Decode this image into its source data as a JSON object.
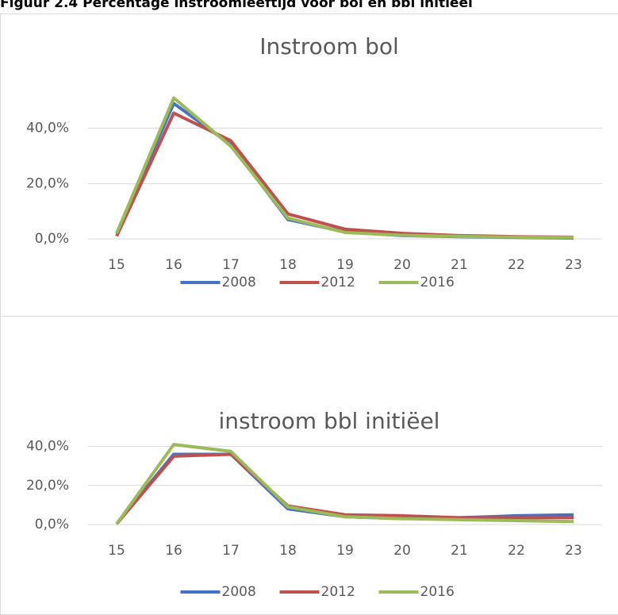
{
  "caption": "Figuur 2.4 Percentage instroomleeftijd voor bol en bbl initieel",
  "chart_data": [
    {
      "type": "line",
      "title": "Instroom bol",
      "categories": [
        "15",
        "16",
        "17",
        "18",
        "19",
        "20",
        "21",
        "22",
        "23"
      ],
      "series": [
        {
          "name": "2008",
          "color": "#4472c4",
          "values": [
            2,
            49,
            34,
            7,
            2.5,
            1.2,
            0.8,
            0.5,
            0.3
          ]
        },
        {
          "name": "2012",
          "color": "#c0504d",
          "values": [
            1,
            45.5,
            35.5,
            9,
            3.5,
            2,
            1.2,
            0.8,
            0.6
          ]
        },
        {
          "name": "2016",
          "color": "#9bbb59",
          "values": [
            2,
            51,
            33.5,
            7.5,
            2.3,
            1.3,
            0.9,
            0.6,
            0.5
          ]
        }
      ],
      "ylim": [
        0,
        60
      ],
      "yticks": [
        {
          "value": 0,
          "label": "0,0%"
        },
        {
          "value": 20,
          "label": "20,0%"
        },
        {
          "value": 40,
          "label": "40,0%"
        }
      ],
      "grid": true,
      "legend": "bottom"
    },
    {
      "type": "line",
      "title": "instroom bbl initiëel",
      "categories": [
        "15",
        "16",
        "17",
        "18",
        "19",
        "20",
        "21",
        "22",
        "23"
      ],
      "series": [
        {
          "name": "2008",
          "color": "#4472c4",
          "values": [
            0.3,
            36,
            36,
            8,
            4,
            3,
            3.5,
            4.5,
            5
          ]
        },
        {
          "name": "2012",
          "color": "#c0504d",
          "values": [
            0.3,
            35,
            36,
            9.5,
            5,
            4.5,
            3.5,
            3.5,
            3.5
          ]
        },
        {
          "name": "2016",
          "color": "#9bbb59",
          "values": [
            0.3,
            41,
            37.5,
            9,
            4,
            3,
            2.5,
            2,
            1.5
          ]
        }
      ],
      "ylim": [
        0,
        50
      ],
      "yticks": [
        {
          "value": 0,
          "label": "0,0%"
        },
        {
          "value": 20,
          "label": "20,0%"
        },
        {
          "value": 40,
          "label": "40,0%"
        }
      ],
      "grid": true,
      "legend": "bottom"
    }
  ]
}
